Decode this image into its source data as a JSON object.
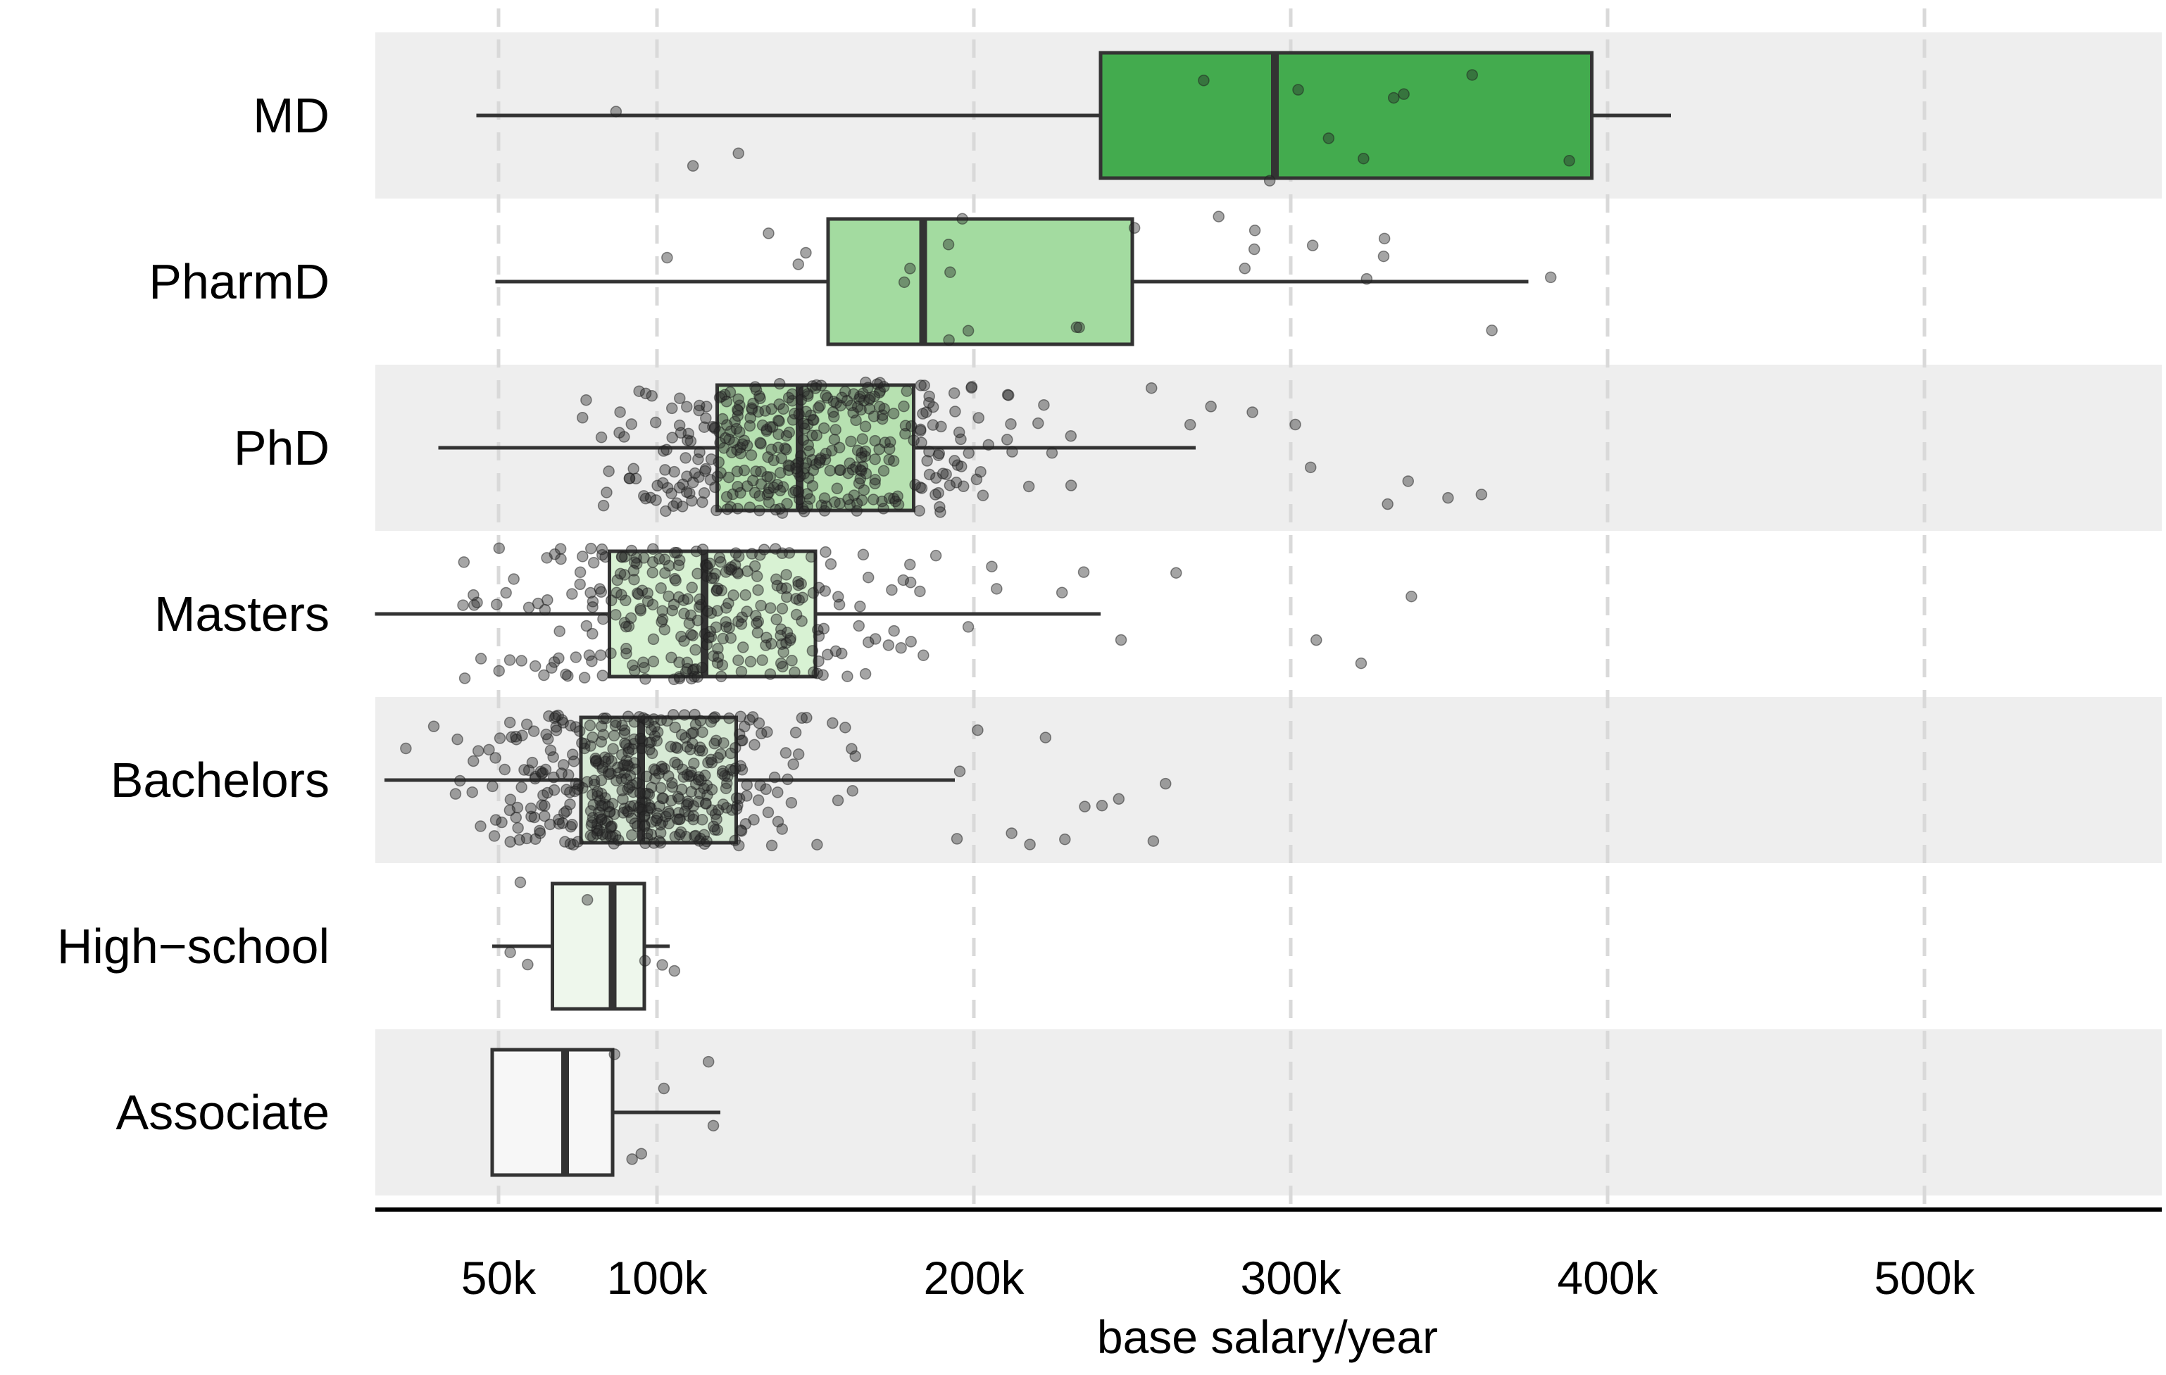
{
  "chart_data": {
    "type": "box",
    "title": "",
    "xlabel": "base salary/year",
    "ylabel": "",
    "xlim": [
      10000,
      575000
    ],
    "xticks": [
      {
        "value": 50000,
        "label": "50k"
      },
      {
        "value": 100000,
        "label": "100k"
      },
      {
        "value": 200000,
        "label": "200k"
      },
      {
        "value": 300000,
        "label": "300k"
      },
      {
        "value": 400000,
        "label": "400k"
      },
      {
        "value": 500000,
        "label": "500k"
      }
    ],
    "grid": "vertical dashed",
    "orientation": "horizontal",
    "categories": [
      {
        "name": "MD",
        "color": "#43ab4e",
        "whisker_low": 43000,
        "q1": 240000,
        "median": 295000,
        "q3": 395000,
        "whisker_high": 420000,
        "n_points": 12
      },
      {
        "name": "PharmD",
        "color": "#a3dba0",
        "whisker_low": 49000,
        "q1": 154000,
        "median": 184000,
        "q3": 250000,
        "whisker_high": 375000,
        "n_points": 24
      },
      {
        "name": "PhD",
        "color": "#b7e1b1",
        "whisker_low": 31000,
        "q1": 119000,
        "median": 145000,
        "q3": 181000,
        "whisker_high": 270000,
        "n_points": 400
      },
      {
        "name": "Masters",
        "color": "#d8f2d3",
        "whisker_low": 11000,
        "q1": 85000,
        "median": 115000,
        "q3": 150000,
        "whisker_high": 240000,
        "n_points": 300
      },
      {
        "name": "Bachelors",
        "color": "#d7ead5",
        "whisker_low": 14000,
        "q1": 76000,
        "median": 95000,
        "q3": 125000,
        "whisker_high": 194000,
        "n_points": 450
      },
      {
        "name": "High−school",
        "color": "#eef7ec",
        "whisker_low": 48000,
        "q1": 67000,
        "median": 86000,
        "q3": 96000,
        "whisker_high": 104000,
        "n_points": 7
      },
      {
        "name": "Associate",
        "color": "#f7f7f7",
        "whisker_low": 48000,
        "q1": 48000,
        "median": 71000,
        "q3": 86000,
        "whisker_high": 120000,
        "n_points": 6
      }
    ]
  }
}
